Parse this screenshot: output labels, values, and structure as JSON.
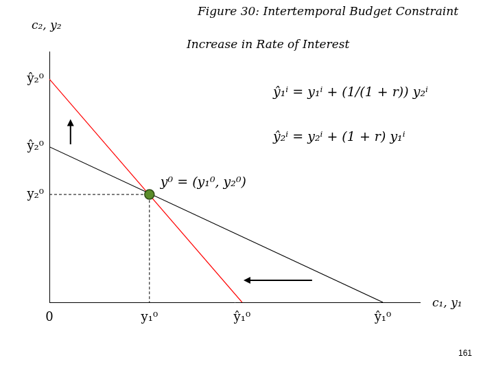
{
  "chart_data": {
    "type": "line",
    "title": "Figure 30: Intertemporal Budget Constraint",
    "subtitle": "Increase in Rate of Interest",
    "x_label": "c₁, y₁",
    "y_label": "c₂, y₂",
    "xlim": [
      0,
      10
    ],
    "ylim": [
      0,
      10
    ],
    "xticks": [
      0,
      {
        "value": 2.7,
        "label": "y₁⁰"
      },
      {
        "value": 5.2,
        "label": "ŷ₁⁰"
      },
      {
        "value": 9,
        "label": "ŷ₁⁰"
      }
    ],
    "yticks": [
      {
        "value": 4.3,
        "label": "y₂⁰"
      },
      {
        "value": 6.2,
        "label": "ŷ₂⁰"
      },
      {
        "value": 8.9,
        "label": "ŷ₂⁰"
      }
    ],
    "grid": false,
    "series": [
      {
        "color": "#000000",
        "line_style": "dashed",
        "x": [
          0,
          2.7,
          2.7
        ],
        "values": [
          4.3,
          4.3,
          0
        ]
      },
      {
        "color": "#000000",
        "line_style": "solid",
        "x": [
          0,
          9
        ],
        "values": [
          6.2,
          0
        ]
      },
      {
        "color": "#ff0000",
        "line_style": "solid",
        "x": [
          0,
          5.2
        ],
        "values": [
          8.9,
          0
        ]
      },
      {
        "type": "scatter",
        "color": "#5b8c2a",
        "marker": "circle",
        "x": [
          2.7
        ],
        "values": [
          4.3
        ]
      }
    ],
    "annotations": [
      "ŷ₁ⁱ = y₁ⁱ + (1/(1 + r)) y₂ⁱ",
      "ŷ₂ⁱ = y₂ⁱ + (1 + r) y₁ⁱ",
      "y⁰ = (y₁⁰, y₂⁰)"
    ],
    "page_number": 161
  }
}
